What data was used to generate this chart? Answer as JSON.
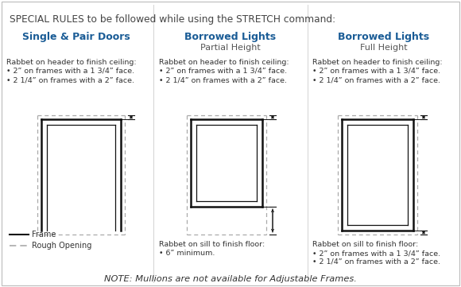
{
  "bg_color": "#ffffff",
  "border_color": "#bbbbbb",
  "title": "SPECIAL RULES to be followed while using the STRETCH command:",
  "title_color": "#444444",
  "header_color": "#1a5c96",
  "col1_header": "Single & Pair Doors",
  "col2_header": "Borrowed Lights",
  "col2_subheader": "Partial Height",
  "col3_header": "Borrowed Lights",
  "col3_subheader": "Full Height",
  "rabbet_text": "Rabbet on header to finish ceiling:",
  "bullet1": "• 2” on frames with a 1 3/4” face.",
  "bullet2": "• 2 1/4” on frames with a 2” face.",
  "sill_text_partial": "Rabbet on sill to finish floor:",
  "sill_bullet_partial": "• 6” minimum.",
  "sill_text_full": "Rabbet on sill to finish floor:",
  "sill_bullet1_full": "• 2” on frames with a 1 3/4” face.",
  "sill_bullet2_full": "• 2 1/4” on frames with a 2” face.",
  "note": "NOTE: Mullions are not available for Adjustable Frames.",
  "frame_color": "#111111",
  "rough_opening_color": "#aaaaaa",
  "legend_frame": "Frame",
  "legend_rough": "Rough Opening",
  "col_divider_color": "#cccccc"
}
